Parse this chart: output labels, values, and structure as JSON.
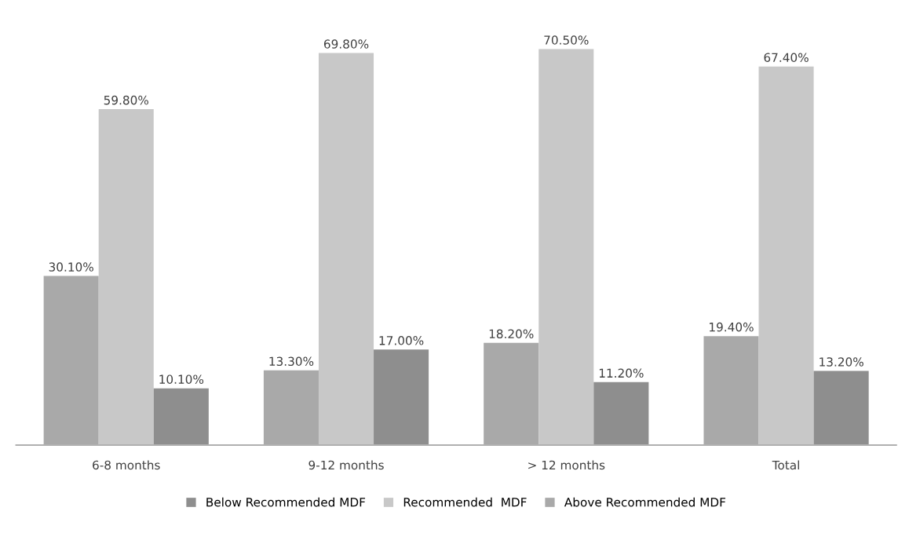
{
  "chart_data": {
    "type": "bar",
    "categories": [
      "6-8 months",
      "9-12 months",
      "> 12 months",
      "Total"
    ],
    "series": [
      {
        "name": "Above Recommended MDF",
        "color": "#a9a9a9",
        "values": [
          30.1,
          13.3,
          18.2,
          19.4
        ],
        "value_labels": [
          "30.10%",
          "13.30%",
          "18.20%",
          "19.40%"
        ]
      },
      {
        "name": "Recommended  MDF",
        "color": "#c8c8c8",
        "values": [
          59.8,
          69.8,
          70.5,
          67.4
        ],
        "value_labels": [
          "59.80%",
          "69.80%",
          "70.50%",
          "67.40%"
        ]
      },
      {
        "name": "Below Recommended MDF",
        "color": "#8e8e8e",
        "values": [
          10.1,
          17.0,
          11.2,
          13.2
        ],
        "value_labels": [
          "10.10%",
          "17.00%",
          "11.20%",
          "13.20%"
        ]
      }
    ],
    "tick_labels": "x",
    "grid": false,
    "legend": "bottom"
  }
}
